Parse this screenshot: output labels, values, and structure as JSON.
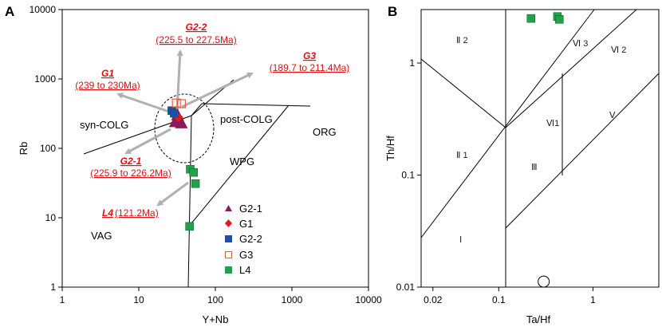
{
  "chart_data": [
    {
      "panel": "A",
      "type": "scatter",
      "xlabel": "Y+Nb",
      "ylabel": "Rb",
      "xscale": "log",
      "yscale": "log",
      "xlim": [
        1,
        10000
      ],
      "ylim": [
        1,
        10000
      ],
      "x_ticks": [
        "1",
        "10",
        "100",
        "1000",
        "10000"
      ],
      "y_ticks": [
        "1",
        "10",
        "100",
        "1000",
        "10000"
      ],
      "fields": [
        "syn-COLG",
        "post-COLG",
        "WPG",
        "ORG",
        "VAG"
      ],
      "series": [
        {
          "name": "G2-1",
          "marker": "triangle",
          "color": "#8b1a5a",
          "points": [
            [
              30,
              240
            ],
            [
              33,
              270
            ],
            [
              36,
              230
            ],
            [
              32,
              300
            ]
          ]
        },
        {
          "name": "G1",
          "marker": "diamond",
          "color": "#e31a1c",
          "points": [
            [
              33,
              280
            ]
          ]
        },
        {
          "name": "G2-2",
          "marker": "square",
          "color": "#1f4fa8",
          "points": [
            [
              27,
              350
            ],
            [
              29,
              320
            ]
          ]
        },
        {
          "name": "G3",
          "marker": "open-square",
          "color": "#e85c3a",
          "points": [
            [
              31,
              450
            ],
            [
              36,
              440
            ]
          ]
        },
        {
          "name": "L4",
          "marker": "square",
          "color": "#22a04a",
          "points": [
            [
              47,
              50
            ],
            [
              52,
              45
            ],
            [
              55,
              31
            ],
            [
              46,
              7.5
            ]
          ]
        }
      ],
      "annotations": [
        {
          "id": "g1",
          "name": "G1",
          "range": "(239 to 230Ma)"
        },
        {
          "id": "g22",
          "name": "G2-2",
          "range": "(225.5 to 227.5Ma)"
        },
        {
          "id": "g3",
          "name": "G3",
          "range": "(189.7 to 211.4Ma)"
        },
        {
          "id": "g21",
          "name": "G2-1",
          "range": "(225.9 to 226.2Ma)"
        },
        {
          "id": "l4",
          "name": "L4",
          "range": "(121.2Ma)"
        }
      ]
    },
    {
      "panel": "B",
      "type": "scatter",
      "xlabel": "Ta/Hf",
      "ylabel": "Th/Hf",
      "xscale": "log",
      "yscale": "log",
      "xlim": [
        0.015,
        5
      ],
      "ylim": [
        0.01,
        3
      ],
      "x_ticks": [
        "0.02",
        "0.1",
        "1"
      ],
      "y_ticks": [
        "0.01",
        "0.1",
        "1"
      ],
      "fields": [
        "Ⅱ 2",
        "Ⅵ 3",
        "Ⅵ 2",
        "Ⅵ1",
        "Ⅴ",
        "Ⅱ 1",
        "Ⅲ",
        "Ⅰ"
      ],
      "series": [
        {
          "name": "L4",
          "marker": "square",
          "color": "#22a04a",
          "points": [
            [
              0.22,
              2.5
            ],
            [
              0.42,
              2.6
            ],
            [
              0.44,
              2.45
            ]
          ]
        },
        {
          "name": "open-circle",
          "marker": "open-circle",
          "color": "#000000",
          "points": [
            [
              0.3,
              0.0112
            ]
          ]
        }
      ]
    }
  ]
}
